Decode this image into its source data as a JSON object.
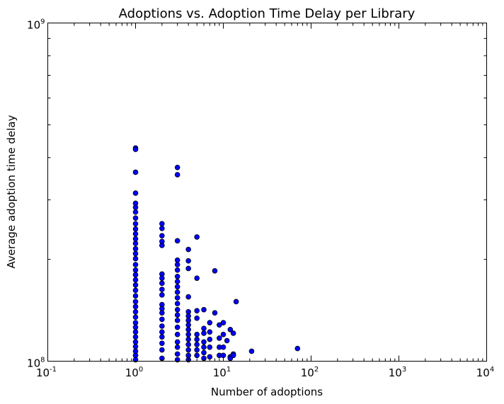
{
  "chart_data": {
    "type": "scatter",
    "title": "Adoptions vs. Adoption Time Delay per Library",
    "xlabel": "Number of adoptions",
    "ylabel": "Average adoption time delay",
    "xscale": "log",
    "yscale": "log",
    "xlim": [
      0.1,
      10000
    ],
    "ylim": [
      100000000,
      1000000000
    ],
    "grid": false,
    "legend": "none",
    "marker_color": "#0000ff",
    "marker_edge_color": "#000000",
    "x_ticks": [
      {
        "base": "10",
        "exp": "-1"
      },
      {
        "base": "10",
        "exp": "0"
      },
      {
        "base": "10",
        "exp": "1"
      },
      {
        "base": "10",
        "exp": "2"
      },
      {
        "base": "10",
        "exp": "3"
      },
      {
        "base": "10",
        "exp": "4"
      }
    ],
    "y_ticks": [
      {
        "base": "10",
        "exp": "8"
      },
      {
        "base": "10",
        "exp": "9"
      }
    ],
    "points": [
      {
        "x": 1,
        "y": 427000000
      },
      {
        "x": 1,
        "y": 423000000
      },
      {
        "x": 1,
        "y": 362000000
      },
      {
        "x": 1,
        "y": 314000000
      },
      {
        "x": 1,
        "y": 293000000
      },
      {
        "x": 1,
        "y": 285000000
      },
      {
        "x": 1,
        "y": 276000000
      },
      {
        "x": 1,
        "y": 265000000
      },
      {
        "x": 1,
        "y": 255000000
      },
      {
        "x": 1,
        "y": 246000000
      },
      {
        "x": 1,
        "y": 238000000
      },
      {
        "x": 1,
        "y": 230000000
      },
      {
        "x": 1,
        "y": 223000000
      },
      {
        "x": 1,
        "y": 215000000
      },
      {
        "x": 1,
        "y": 208000000
      },
      {
        "x": 1,
        "y": 201000000
      },
      {
        "x": 1,
        "y": 193000000
      },
      {
        "x": 1,
        "y": 186000000
      },
      {
        "x": 1,
        "y": 180000000
      },
      {
        "x": 1,
        "y": 174000000
      },
      {
        "x": 1,
        "y": 168000000
      },
      {
        "x": 1,
        "y": 162000000
      },
      {
        "x": 1,
        "y": 156000000
      },
      {
        "x": 1,
        "y": 150000000
      },
      {
        "x": 1,
        "y": 145000000
      },
      {
        "x": 1,
        "y": 140000000
      },
      {
        "x": 1,
        "y": 135000000
      },
      {
        "x": 1,
        "y": 130000000
      },
      {
        "x": 1,
        "y": 126000000
      },
      {
        "x": 1,
        "y": 122000000
      },
      {
        "x": 1,
        "y": 118000000
      },
      {
        "x": 1,
        "y": 114000000
      },
      {
        "x": 1,
        "y": 110500000
      },
      {
        "x": 1,
        "y": 107000000
      },
      {
        "x": 1,
        "y": 104000000
      },
      {
        "x": 1,
        "y": 101000000
      },
      {
        "x": 2,
        "y": 255000000
      },
      {
        "x": 2,
        "y": 247000000
      },
      {
        "x": 2,
        "y": 235000000
      },
      {
        "x": 2,
        "y": 226000000
      },
      {
        "x": 2,
        "y": 220000000
      },
      {
        "x": 2,
        "y": 181000000
      },
      {
        "x": 2,
        "y": 176000000
      },
      {
        "x": 2,
        "y": 170000000
      },
      {
        "x": 2,
        "y": 163000000
      },
      {
        "x": 2,
        "y": 157000000
      },
      {
        "x": 2,
        "y": 147000000
      },
      {
        "x": 2,
        "y": 143000000
      },
      {
        "x": 2,
        "y": 139000000
      },
      {
        "x": 2,
        "y": 133000000
      },
      {
        "x": 2,
        "y": 127000000
      },
      {
        "x": 2,
        "y": 122000000
      },
      {
        "x": 2,
        "y": 118000000
      },
      {
        "x": 2,
        "y": 113000000
      },
      {
        "x": 2,
        "y": 108000000
      },
      {
        "x": 2,
        "y": 102000000
      },
      {
        "x": 3,
        "y": 374000000
      },
      {
        "x": 3,
        "y": 356000000
      },
      {
        "x": 3,
        "y": 227000000
      },
      {
        "x": 3,
        "y": 199000000
      },
      {
        "x": 3,
        "y": 193000000
      },
      {
        "x": 3,
        "y": 186000000
      },
      {
        "x": 3,
        "y": 178000000
      },
      {
        "x": 3,
        "y": 172000000
      },
      {
        "x": 3,
        "y": 166000000
      },
      {
        "x": 3,
        "y": 160000000
      },
      {
        "x": 3,
        "y": 154000000
      },
      {
        "x": 3,
        "y": 148000000
      },
      {
        "x": 3,
        "y": 142000000
      },
      {
        "x": 3,
        "y": 137000000
      },
      {
        "x": 3,
        "y": 132000000
      },
      {
        "x": 3,
        "y": 126000000
      },
      {
        "x": 3,
        "y": 120000000
      },
      {
        "x": 3,
        "y": 114000000
      },
      {
        "x": 3,
        "y": 110000000
      },
      {
        "x": 3,
        "y": 105000000
      },
      {
        "x": 3,
        "y": 101000000
      },
      {
        "x": 4,
        "y": 214000000
      },
      {
        "x": 4,
        "y": 198000000
      },
      {
        "x": 4,
        "y": 188000000
      },
      {
        "x": 4,
        "y": 155000000
      },
      {
        "x": 4,
        "y": 140000000
      },
      {
        "x": 4,
        "y": 136000000
      },
      {
        "x": 4,
        "y": 132000000
      },
      {
        "x": 4,
        "y": 128000000
      },
      {
        "x": 4,
        "y": 124000000
      },
      {
        "x": 4,
        "y": 120000000
      },
      {
        "x": 4,
        "y": 116000000
      },
      {
        "x": 4,
        "y": 112000000
      },
      {
        "x": 4,
        "y": 108000000
      },
      {
        "x": 4,
        "y": 104000000
      },
      {
        "x": 4,
        "y": 101000000
      },
      {
        "x": 5,
        "y": 233000000
      },
      {
        "x": 5,
        "y": 176000000
      },
      {
        "x": 5,
        "y": 141000000
      },
      {
        "x": 5,
        "y": 134000000
      },
      {
        "x": 5,
        "y": 120000000
      },
      {
        "x": 5,
        "y": 116000000
      },
      {
        "x": 5,
        "y": 112000000
      },
      {
        "x": 5,
        "y": 108000000
      },
      {
        "x": 5,
        "y": 104000000
      },
      {
        "x": 6,
        "y": 142000000
      },
      {
        "x": 6,
        "y": 125000000
      },
      {
        "x": 6,
        "y": 121000000
      },
      {
        "x": 6,
        "y": 114000000
      },
      {
        "x": 6,
        "y": 110000000
      },
      {
        "x": 6,
        "y": 106000000
      },
      {
        "x": 6,
        "y": 102000000
      },
      {
        "x": 7,
        "y": 130000000
      },
      {
        "x": 7,
        "y": 122000000
      },
      {
        "x": 7,
        "y": 116000000
      },
      {
        "x": 7,
        "y": 110000000
      },
      {
        "x": 7,
        "y": 103000000
      },
      {
        "x": 8,
        "y": 185000000
      },
      {
        "x": 8,
        "y": 139000000
      },
      {
        "x": 9,
        "y": 128000000
      },
      {
        "x": 9,
        "y": 117000000
      },
      {
        "x": 9,
        "y": 110000000
      },
      {
        "x": 9,
        "y": 104000000
      },
      {
        "x": 10,
        "y": 130000000
      },
      {
        "x": 10,
        "y": 120000000
      },
      {
        "x": 10,
        "y": 110000000
      },
      {
        "x": 10,
        "y": 104000000
      },
      {
        "x": 11,
        "y": 115000000
      },
      {
        "x": 12,
        "y": 124000000
      },
      {
        "x": 12,
        "y": 103000000
      },
      {
        "x": 12,
        "y": 102000000
      },
      {
        "x": 13,
        "y": 121000000
      },
      {
        "x": 13,
        "y": 105000000
      },
      {
        "x": 13,
        "y": 104000000
      },
      {
        "x": 14,
        "y": 150000000
      },
      {
        "x": 21,
        "y": 107000000
      },
      {
        "x": 70,
        "y": 109000000
      }
    ]
  }
}
